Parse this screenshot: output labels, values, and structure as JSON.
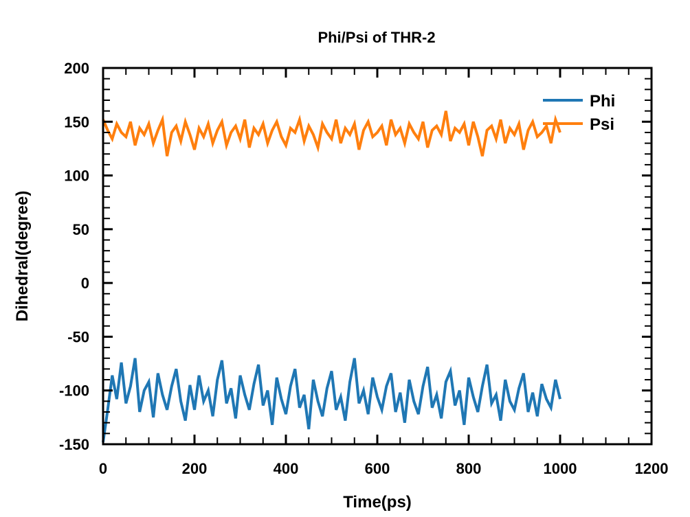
{
  "chart_data": {
    "type": "line",
    "title": "Phi/Psi of THR-2",
    "xlabel": "Time(ps)",
    "ylabel": "Dihedral(degree)",
    "xlim": [
      0,
      1200
    ],
    "ylim": [
      -150,
      200
    ],
    "xticks": [
      "0",
      "200",
      "400",
      "600",
      "800",
      "1000",
      "1200"
    ],
    "yticks": [
      "200",
      "150",
      "100",
      "50",
      "0",
      "-50",
      "-100",
      "-150"
    ],
    "legend_position": "top-right",
    "grid": false,
    "x": [
      0,
      10,
      20,
      30,
      40,
      50,
      60,
      70,
      80,
      90,
      100,
      110,
      120,
      130,
      140,
      150,
      160,
      170,
      180,
      190,
      200,
      210,
      220,
      230,
      240,
      250,
      260,
      270,
      280,
      290,
      300,
      310,
      320,
      330,
      340,
      350,
      360,
      370,
      380,
      390,
      400,
      410,
      420,
      430,
      440,
      450,
      460,
      470,
      480,
      490,
      500,
      510,
      520,
      530,
      540,
      550,
      560,
      570,
      580,
      590,
      600,
      610,
      620,
      630,
      640,
      650,
      660,
      670,
      680,
      690,
      700,
      710,
      720,
      730,
      740,
      750,
      760,
      770,
      780,
      790,
      800,
      810,
      820,
      830,
      840,
      850,
      860,
      870,
      880,
      890,
      900,
      910,
      920,
      930,
      940,
      950,
      960,
      970,
      980,
      990,
      1000
    ],
    "series": [
      {
        "name": "Phi",
        "color": "#1f77b4",
        "values": [
          -148,
          -118,
          -86,
          -108,
          -74,
          -112,
          -96,
          -70,
          -120,
          -100,
          -92,
          -125,
          -84,
          -104,
          -118,
          -96,
          -80,
          -110,
          -128,
          -95,
          -118,
          -86,
          -110,
          -100,
          -124,
          -90,
          -72,
          -112,
          -98,
          -126,
          -86,
          -104,
          -118,
          -94,
          -76,
          -114,
          -100,
          -132,
          -88,
          -108,
          -122,
          -96,
          -80,
          -116,
          -104,
          -136,
          -90,
          -110,
          -124,
          -98,
          -82,
          -118,
          -106,
          -128,
          -92,
          -70,
          -112,
          -100,
          -122,
          -88,
          -106,
          -118,
          -96,
          -84,
          -120,
          -102,
          -130,
          -90,
          -110,
          -122,
          -96,
          -78,
          -116,
          -104,
          -126,
          -92,
          -82,
          -114,
          -100,
          -132,
          -88,
          -106,
          -120,
          -96,
          -76,
          -112,
          -104,
          -128,
          -90,
          -110,
          -118,
          -98,
          -84,
          -120,
          -102,
          -124,
          -94,
          -108,
          -116,
          -90,
          -108
        ]
      },
      {
        "name": "Psi",
        "color": "#ff7f0e",
        "values": [
          152,
          142,
          134,
          148,
          140,
          136,
          150,
          128,
          144,
          138,
          148,
          130,
          142,
          152,
          118,
          140,
          146,
          132,
          150,
          138,
          124,
          144,
          136,
          148,
          130,
          142,
          150,
          128,
          140,
          146,
          134,
          152,
          126,
          144,
          138,
          148,
          130,
          142,
          150,
          136,
          128,
          144,
          140,
          152,
          132,
          146,
          138,
          126,
          148,
          140,
          134,
          152,
          130,
          144,
          138,
          148,
          124,
          142,
          150,
          136,
          140,
          146,
          128,
          152,
          138,
          144,
          130,
          148,
          140,
          134,
          150,
          126,
          142,
          146,
          138,
          160,
          132,
          144,
          140,
          148,
          128,
          150,
          136,
          118,
          142,
          146,
          134,
          152,
          130,
          144,
          138,
          148,
          124,
          142,
          150,
          136,
          140,
          146,
          130,
          152,
          140
        ]
      }
    ]
  }
}
